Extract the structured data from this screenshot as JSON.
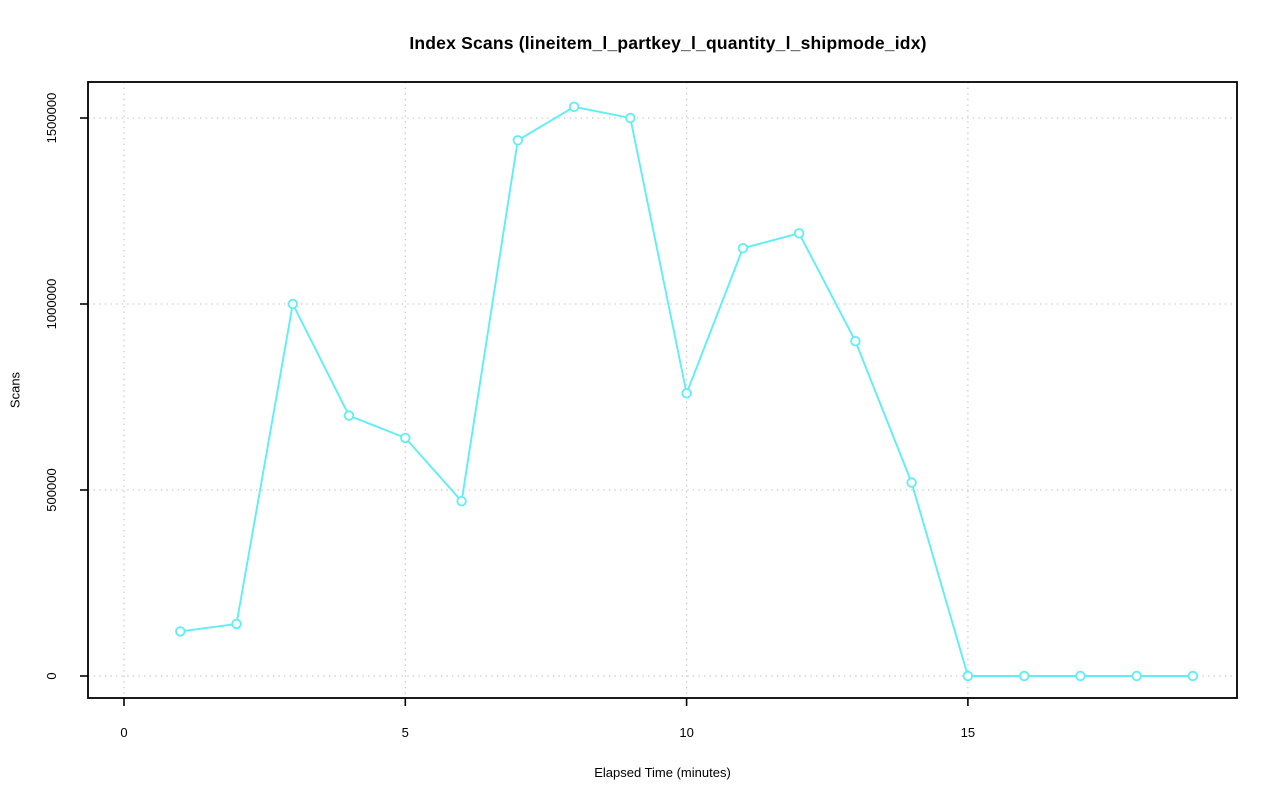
{
  "page": {
    "background_color": "#FFFFFF",
    "text_color": "#000000"
  },
  "chart_data": {
    "type": "line",
    "title": "Index Scans (lineitem_l_partkey_l_quantity_l_shipmode_idx)",
    "xlabel": "Elapsed Time (minutes)",
    "ylabel": "Scans",
    "x": [
      1,
      2,
      3,
      4,
      5,
      6,
      7,
      8,
      9,
      10,
      11,
      12,
      13,
      14,
      15,
      16,
      17,
      18,
      19
    ],
    "values": [
      120000,
      140000,
      1000000,
      700000,
      640000,
      470000,
      1440000,
      1530000,
      1500000,
      760000,
      1150000,
      1190000,
      900000,
      520000,
      0,
      0,
      0,
      0,
      0
    ],
    "xticks": [
      0,
      5,
      10,
      15
    ],
    "xtick_labels": [
      "0",
      "5",
      "10",
      "15"
    ],
    "yticks": [
      0,
      500000,
      1000000,
      1500000
    ],
    "ytick_labels": [
      "0",
      "500000",
      "1000000",
      "1500000"
    ],
    "xlim": [
      -0.65,
      19.8
    ],
    "ylim": [
      0,
      1597000
    ],
    "grid": true,
    "grid_style": "dotted",
    "legend_position": "none",
    "marker": "open-circle",
    "series_color": "#5FEEF5",
    "grid_color": "#C9C9C9",
    "axis_color": "#000000"
  }
}
